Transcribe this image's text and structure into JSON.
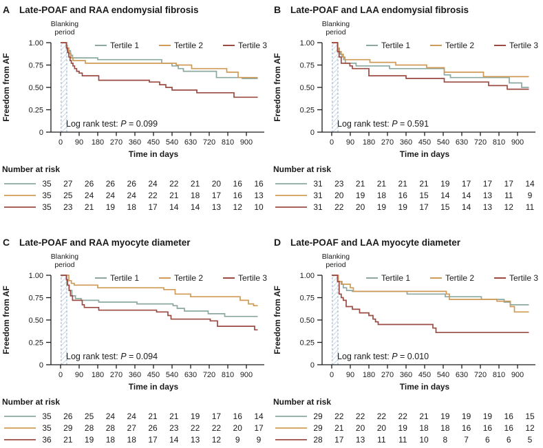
{
  "figure": {
    "y_axis_label": "Freedom from AF",
    "x_axis_label": "Time in days",
    "number_at_risk_label": "Number at risk",
    "blanking_label": [
      "Blanking",
      "period"
    ],
    "log_rank": {
      "prefix": "Log rank test: ",
      "p_symbol": "P",
      "equals": " = "
    },
    "legend": [
      "Tertile 1",
      "Tertile 2",
      "Tertile 3"
    ],
    "y_ticks": [
      "1.00",
      "0.75",
      "0.50",
      "0.25",
      "0"
    ],
    "y_tick_values": [
      1.0,
      0.75,
      0.5,
      0.25,
      0
    ],
    "x_ticks": [
      0,
      90,
      180,
      270,
      360,
      450,
      540,
      630,
      720,
      810,
      900
    ],
    "xlim": [
      0,
      955
    ],
    "ylim": [
      0,
      1
    ],
    "blanking_span_days": [
      3,
      30
    ],
    "colors": {
      "tertile1": "#8aa8a0",
      "tertile2": "#d09a55",
      "tertile3": "#9b4a42",
      "blanking_border": "#92abc8",
      "blanking_hatch": "#cdd9e5",
      "axis": "#1a1a1a"
    }
  },
  "chart_data": [
    {
      "letter": "A",
      "title": "Late-POAF and RAA endomysial fibrosis",
      "type": "line",
      "log_rank_p": "0.099",
      "series": [
        {
          "name": "Tertile 1",
          "color": "tertile1",
          "steps": [
            [
              0,
              1.0
            ],
            [
              28,
              0.97
            ],
            [
              33,
              0.91
            ],
            [
              48,
              0.86
            ],
            [
              58,
              0.83
            ],
            [
              180,
              0.81
            ],
            [
              490,
              0.77
            ],
            [
              540,
              0.74
            ],
            [
              570,
              0.71
            ],
            [
              595,
              0.68
            ],
            [
              755,
              0.61
            ],
            [
              880,
              0.6
            ]
          ]
        },
        {
          "name": "Tertile 2",
          "color": "tertile2",
          "steps": [
            [
              0,
              1.0
            ],
            [
              30,
              0.94
            ],
            [
              40,
              0.88
            ],
            [
              50,
              0.83
            ],
            [
              60,
              0.8
            ],
            [
              120,
              0.77
            ],
            [
              560,
              0.75
            ],
            [
              635,
              0.71
            ],
            [
              805,
              0.67
            ],
            [
              860,
              0.61
            ]
          ]
        },
        {
          "name": "Tertile 3",
          "color": "tertile3",
          "steps": [
            [
              0,
              1.0
            ],
            [
              28,
              0.94
            ],
            [
              34,
              0.89
            ],
            [
              40,
              0.84
            ],
            [
              46,
              0.8
            ],
            [
              52,
              0.77
            ],
            [
              60,
              0.74
            ],
            [
              68,
              0.71
            ],
            [
              78,
              0.68
            ],
            [
              90,
              0.66
            ],
            [
              105,
              0.63
            ],
            [
              185,
              0.58
            ],
            [
              430,
              0.56
            ],
            [
              480,
              0.53
            ],
            [
              510,
              0.5
            ],
            [
              540,
              0.47
            ],
            [
              660,
              0.44
            ],
            [
              840,
              0.39
            ]
          ]
        }
      ],
      "number_at_risk": [
        {
          "color": "tertile1",
          "counts": [
            35,
            27,
            26,
            26,
            26,
            24,
            22,
            21,
            20,
            16,
            16
          ]
        },
        {
          "color": "tertile2",
          "counts": [
            35,
            25,
            24,
            24,
            24,
            22,
            21,
            18,
            17,
            16,
            13
          ]
        },
        {
          "color": "tertile3",
          "counts": [
            35,
            23,
            21,
            19,
            18,
            17,
            14,
            14,
            13,
            12,
            10
          ]
        }
      ]
    },
    {
      "letter": "B",
      "title": "Late-POAF and LAA endomysial fibrosis",
      "type": "line",
      "log_rank_p": "0.591",
      "series": [
        {
          "name": "Tertile 1",
          "color": "tertile1",
          "steps": [
            [
              0,
              1.0
            ],
            [
              28,
              0.94
            ],
            [
              34,
              0.9
            ],
            [
              42,
              0.87
            ],
            [
              50,
              0.84
            ],
            [
              58,
              0.81
            ],
            [
              66,
              0.77
            ],
            [
              118,
              0.74
            ],
            [
              280,
              0.71
            ],
            [
              545,
              0.64
            ],
            [
              575,
              0.61
            ],
            [
              860,
              0.55
            ],
            [
              920,
              0.5
            ]
          ]
        },
        {
          "name": "Tertile 2",
          "color": "tertile2",
          "steps": [
            [
              0,
              1.0
            ],
            [
              30,
              0.94
            ],
            [
              37,
              0.9
            ],
            [
              46,
              0.87
            ],
            [
              56,
              0.84
            ],
            [
              64,
              0.81
            ],
            [
              185,
              0.78
            ],
            [
              310,
              0.75
            ],
            [
              460,
              0.72
            ],
            [
              545,
              0.67
            ],
            [
              735,
              0.62
            ]
          ]
        },
        {
          "name": "Tertile 3",
          "color": "tertile3",
          "steps": [
            [
              0,
              1.0
            ],
            [
              28,
              0.9
            ],
            [
              36,
              0.84
            ],
            [
              46,
              0.77
            ],
            [
              88,
              0.74
            ],
            [
              100,
              0.71
            ],
            [
              180,
              0.63
            ],
            [
              360,
              0.6
            ],
            [
              545,
              0.56
            ],
            [
              760,
              0.52
            ],
            [
              850,
              0.48
            ]
          ]
        }
      ],
      "number_at_risk": [
        {
          "color": "tertile1",
          "counts": [
            31,
            23,
            21,
            21,
            21,
            21,
            19,
            17,
            17,
            17,
            14
          ]
        },
        {
          "color": "tertile2",
          "counts": [
            31,
            20,
            19,
            18,
            16,
            15,
            14,
            14,
            13,
            11,
            9
          ]
        },
        {
          "color": "tertile3",
          "counts": [
            31,
            22,
            20,
            19,
            19,
            17,
            15,
            14,
            13,
            12,
            11
          ]
        }
      ]
    },
    {
      "letter": "C",
      "title": "Late-POAF and RAA myocyte diameter",
      "type": "line",
      "log_rank_p": "0.094",
      "series": [
        {
          "name": "Tertile 1",
          "color": "tertile1",
          "steps": [
            [
              0,
              1.0
            ],
            [
              30,
              0.89
            ],
            [
              42,
              0.83
            ],
            [
              55,
              0.77
            ],
            [
              72,
              0.74
            ],
            [
              100,
              0.72
            ],
            [
              185,
              0.7
            ],
            [
              370,
              0.68
            ],
            [
              545,
              0.66
            ],
            [
              565,
              0.63
            ],
            [
              600,
              0.6
            ],
            [
              715,
              0.57
            ],
            [
              795,
              0.54
            ]
          ]
        },
        {
          "name": "Tertile 2",
          "color": "tertile2",
          "steps": [
            [
              0,
              1.0
            ],
            [
              40,
              0.94
            ],
            [
              52,
              0.91
            ],
            [
              66,
              0.89
            ],
            [
              180,
              0.86
            ],
            [
              500,
              0.84
            ],
            [
              555,
              0.79
            ],
            [
              630,
              0.76
            ],
            [
              870,
              0.72
            ],
            [
              910,
              0.68
            ],
            [
              935,
              0.66
            ]
          ]
        },
        {
          "name": "Tertile 3",
          "color": "tertile3",
          "steps": [
            [
              0,
              1.0
            ],
            [
              28,
              0.95
            ],
            [
              34,
              0.89
            ],
            [
              41,
              0.83
            ],
            [
              48,
              0.77
            ],
            [
              58,
              0.72
            ],
            [
              105,
              0.67
            ],
            [
              115,
              0.64
            ],
            [
              185,
              0.61
            ],
            [
              465,
              0.59
            ],
            [
              520,
              0.55
            ],
            [
              535,
              0.51
            ],
            [
              725,
              0.49
            ],
            [
              760,
              0.43
            ],
            [
              940,
              0.39
            ]
          ]
        }
      ],
      "number_at_risk": [
        {
          "color": "tertile1",
          "counts": [
            35,
            26,
            25,
            24,
            24,
            21,
            21,
            19,
            17,
            16,
            14
          ]
        },
        {
          "color": "tertile2",
          "counts": [
            35,
            29,
            28,
            28,
            27,
            26,
            23,
            22,
            22,
            20,
            17
          ]
        },
        {
          "color": "tertile3",
          "counts": [
            36,
            21,
            19,
            18,
            18,
            17,
            14,
            13,
            12,
            9,
            9
          ]
        }
      ]
    },
    {
      "letter": "D",
      "title": "Late-POAF and LAA myocyte diameter",
      "type": "line",
      "log_rank_p": "0.010",
      "series": [
        {
          "name": "Tertile 1",
          "color": "tertile1",
          "steps": [
            [
              0,
              1.0
            ],
            [
              30,
              0.93
            ],
            [
              46,
              0.9
            ],
            [
              56,
              0.86
            ],
            [
              72,
              0.83
            ],
            [
              100,
              0.82
            ],
            [
              365,
              0.79
            ],
            [
              550,
              0.76
            ],
            [
              725,
              0.73
            ],
            [
              835,
              0.7
            ],
            [
              865,
              0.67
            ]
          ]
        },
        {
          "name": "Tertile 2",
          "color": "tertile2",
          "steps": [
            [
              0,
              1.0
            ],
            [
              32,
              0.93
            ],
            [
              50,
              0.9
            ],
            [
              90,
              0.86
            ],
            [
              105,
              0.82
            ],
            [
              555,
              0.79
            ],
            [
              570,
              0.73
            ],
            [
              800,
              0.71
            ],
            [
              865,
              0.65
            ],
            [
              885,
              0.59
            ]
          ]
        },
        {
          "name": "Tertile 3",
          "color": "tertile3",
          "steps": [
            [
              0,
              1.0
            ],
            [
              28,
              0.93
            ],
            [
              36,
              0.79
            ],
            [
              46,
              0.75
            ],
            [
              56,
              0.72
            ],
            [
              70,
              0.65
            ],
            [
              100,
              0.62
            ],
            [
              135,
              0.58
            ],
            [
              180,
              0.55
            ],
            [
              200,
              0.51
            ],
            [
              212,
              0.48
            ],
            [
              225,
              0.45
            ],
            [
              490,
              0.41
            ],
            [
              505,
              0.36
            ]
          ]
        }
      ],
      "number_at_risk": [
        {
          "color": "tertile1",
          "counts": [
            29,
            22,
            22,
            22,
            22,
            21,
            19,
            19,
            19,
            16,
            15
          ]
        },
        {
          "color": "tertile2",
          "counts": [
            29,
            21,
            20,
            20,
            19,
            18,
            18,
            16,
            16,
            16,
            12
          ]
        },
        {
          "color": "tertile3",
          "counts": [
            28,
            17,
            13,
            11,
            11,
            10,
            8,
            7,
            6,
            6,
            5
          ]
        }
      ]
    }
  ]
}
